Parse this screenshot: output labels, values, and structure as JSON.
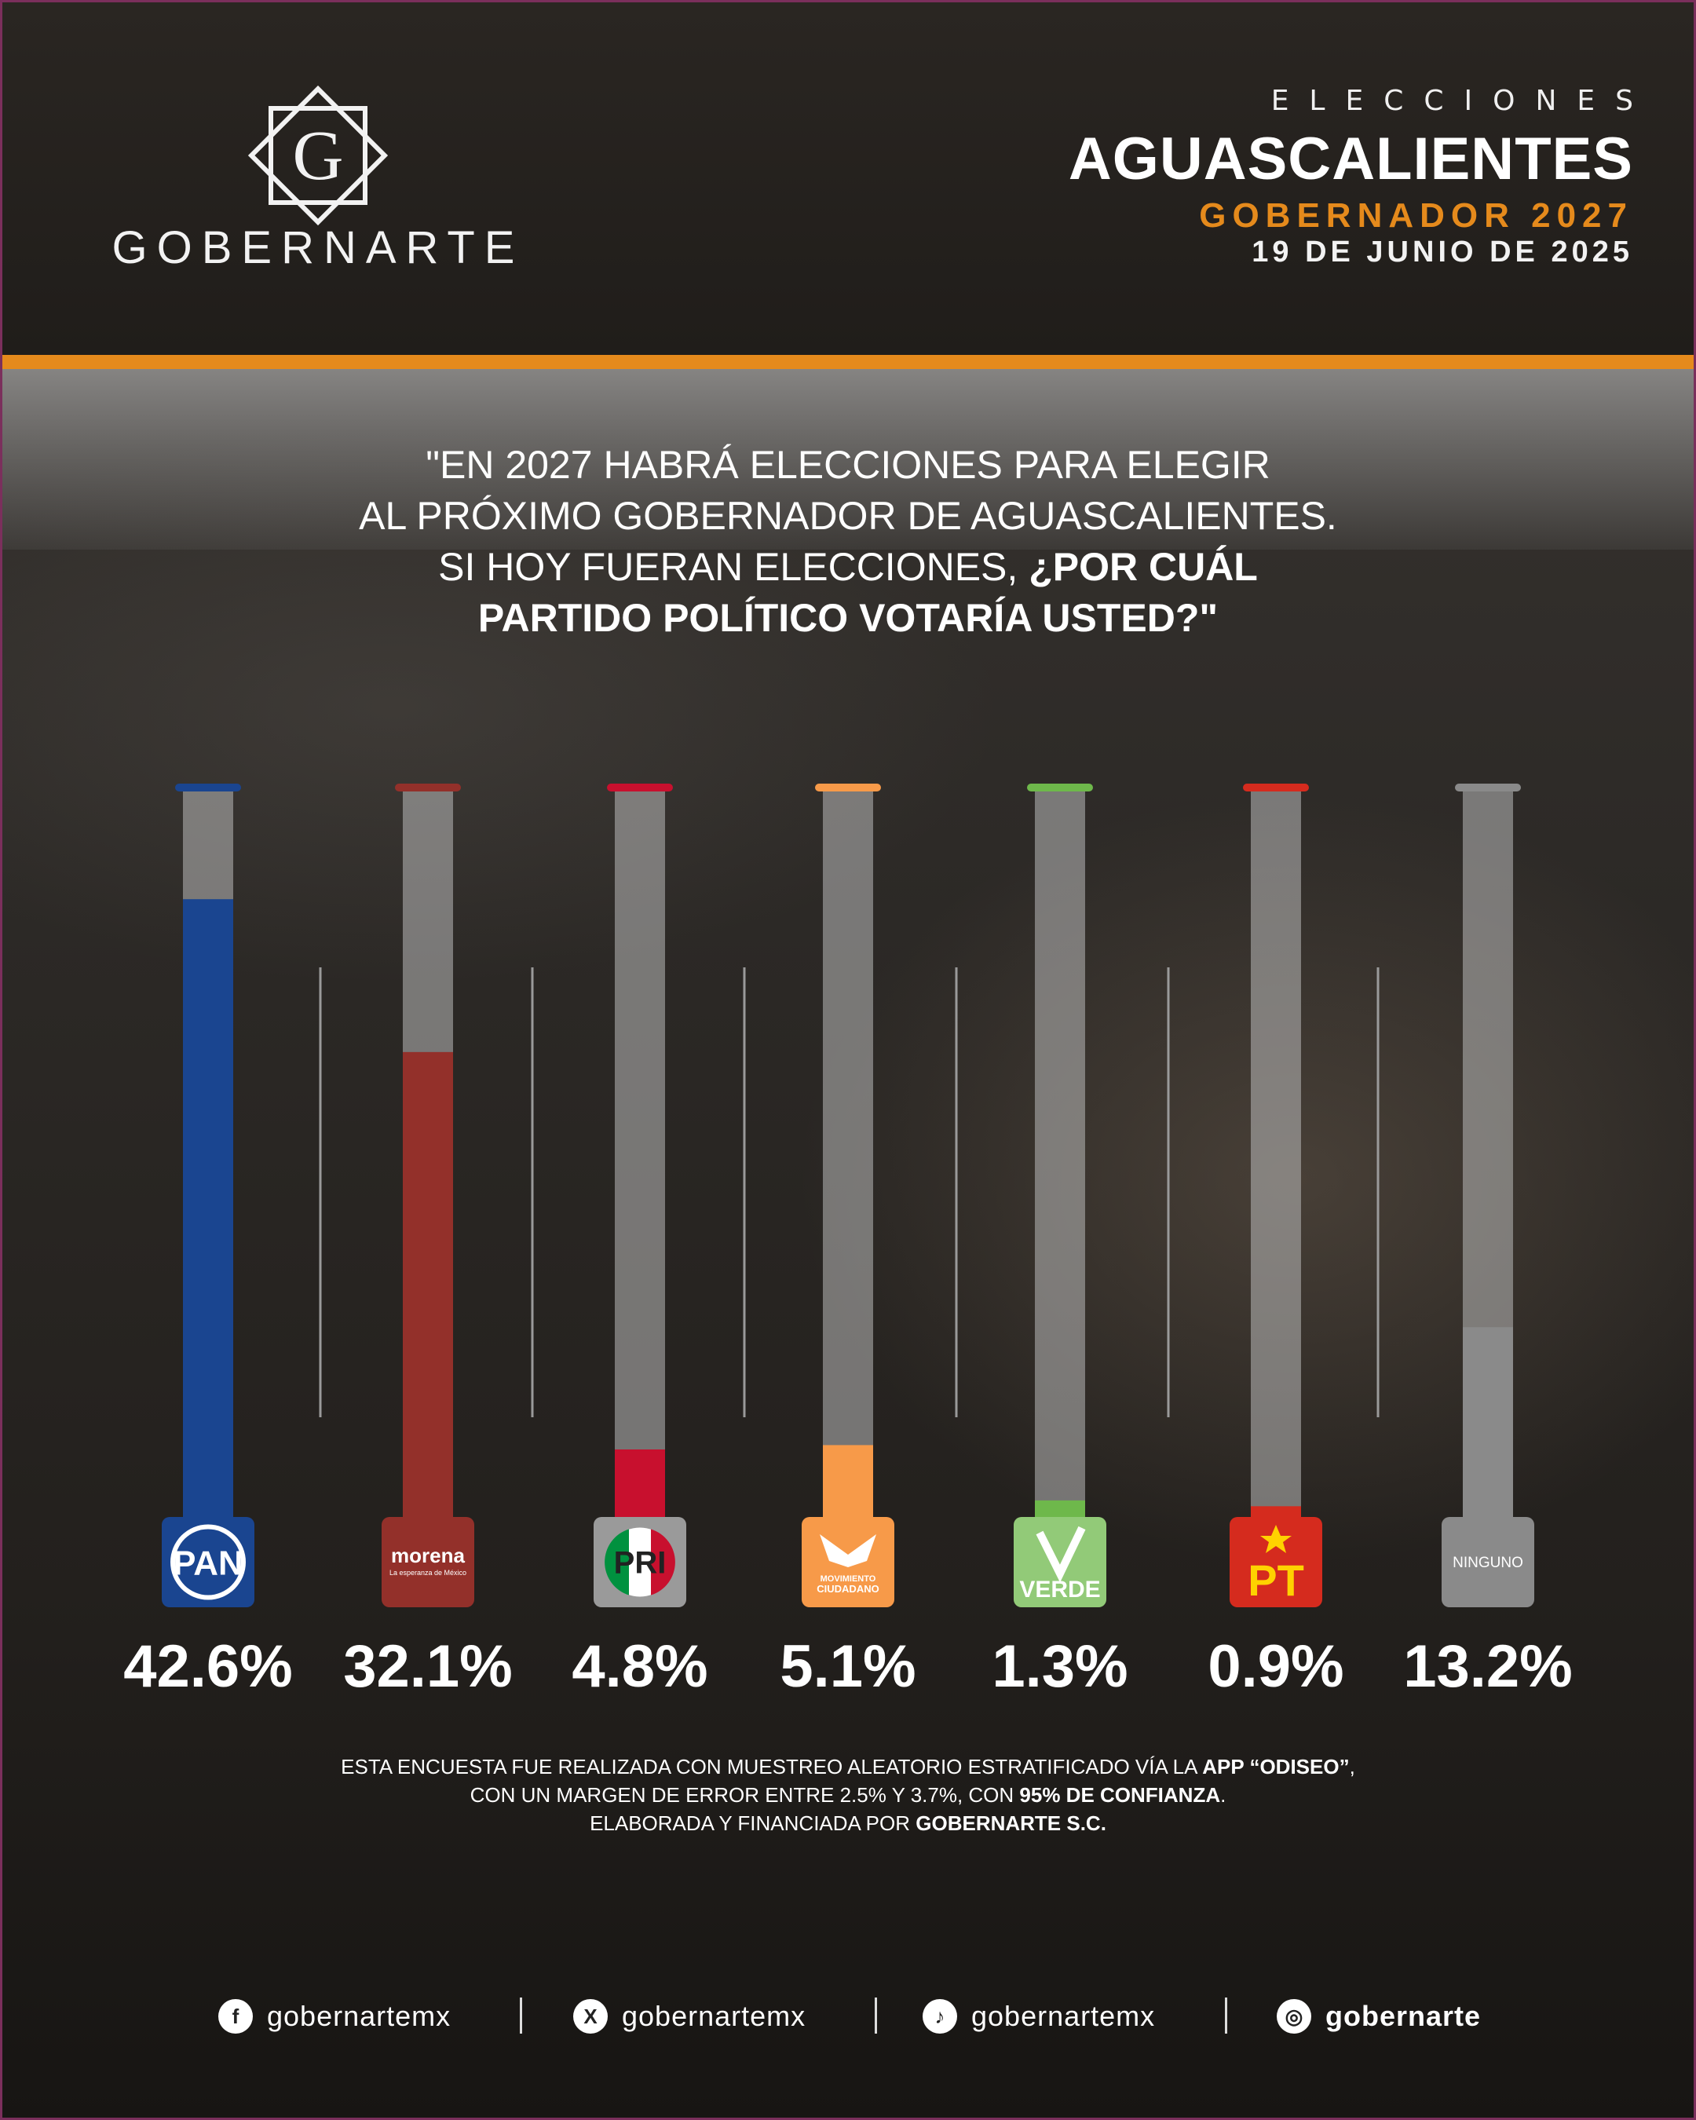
{
  "brand": {
    "name": "GOBERNARTE",
    "logo_letter": "G"
  },
  "header": {
    "kicker": "ELECCIONES",
    "state": "AGUASCALIENTES",
    "race": "GOBERNADOR 2027",
    "date": "19 DE JUNIO DE 2025"
  },
  "question": {
    "line1": "\"EN 2027 HABRÁ ELECCIONES PARA ELEGIR",
    "line2": "AL PRÓXIMO GOBERNADOR DE AGUASCALIENTES.",
    "line3a": "SI HOY FUERAN ELECCIONES, ",
    "line3b": "¿POR CUÁL",
    "line4": "PARTIDO POLÍTICO VOTARÍA USTED?\""
  },
  "chart_data": {
    "type": "bar",
    "categories": [
      "PAN",
      "morena",
      "PRI",
      "MOVIMIENTO CIUDADANO",
      "VERDE",
      "PT",
      "NINGUNO"
    ],
    "values": [
      42.6,
      32.1,
      4.8,
      5.1,
      1.3,
      0.9,
      13.2
    ],
    "value_labels": [
      "42.6%",
      "32.1%",
      "4.8%",
      "5.1%",
      "1.3%",
      "0.9%",
      "13.2%"
    ],
    "ylim": [
      0,
      50
    ],
    "colors": [
      "#1a4590",
      "#93302a",
      "#c8102e",
      "#f79a49",
      "#6eb84b",
      "#d52b1e",
      "#8a8a8a"
    ],
    "logo_texts": {
      "pan": "PAN",
      "morena": "morena",
      "morena_tagline": "La esperanza de México",
      "pri": "PRI",
      "mc_line1": "MOVIMIENTO",
      "mc_line2": "CIUDADANO",
      "verde": "VERDE",
      "pt": "PT",
      "ninguno": "NINGUNO"
    }
  },
  "footnote": {
    "l1a": "ESTA ENCUESTA FUE REALIZADA CON MUESTREO ALEATORIO ESTRATIFICADO VÍA LA ",
    "l1b": "APP “ODISEO”",
    "l1c": ",",
    "l2a": "CON UN MARGEN DE ERROR ENTRE 2.5% Y 3.7%, CON ",
    "l2b": "95% DE CONFIANZA",
    "l2c": ".",
    "l3a": "ELABORADA Y FINANCIADA POR ",
    "l3b": "GOBERNARTE S.C."
  },
  "socials": [
    {
      "icon": "facebook-icon",
      "glyph": "f",
      "label": "gobernartemx"
    },
    {
      "icon": "x-icon",
      "glyph": "X",
      "label": "gobernartemx"
    },
    {
      "icon": "tiktok-icon",
      "glyph": "♪",
      "label": "gobernartemx"
    },
    {
      "icon": "instagram-icon",
      "glyph": "◎",
      "label": "gobernarte"
    }
  ]
}
